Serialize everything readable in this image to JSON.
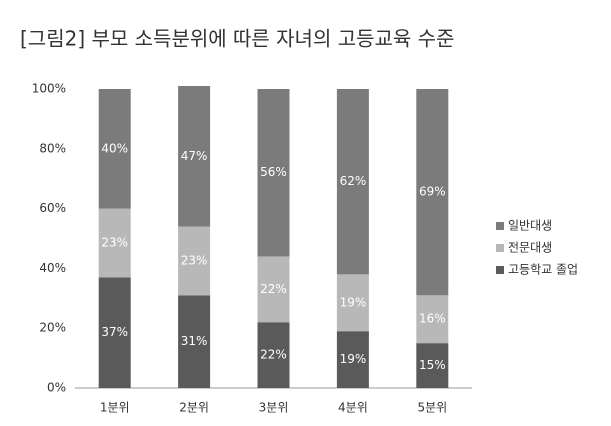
{
  "chart_data": {
    "type": "stacked_bar",
    "title": "[그림2] 부모 소득분위에 따른 자녀의 고등교육 수준",
    "categories": [
      "1분위",
      "2분위",
      "3분위",
      "4분위",
      "5분위"
    ],
    "series": [
      {
        "name": "일반대생",
        "color": "#7b7b7b",
        "values": [
          40,
          47,
          56,
          62,
          69
        ],
        "value_labels": [
          "40%",
          "47%",
          "56%",
          "62%",
          "69%"
        ]
      },
      {
        "name": "전문대생",
        "color": "#b8b8b8",
        "values": [
          23,
          23,
          22,
          19,
          16
        ],
        "value_labels": [
          "23%",
          "23%",
          "22%",
          "19%",
          "16%"
        ]
      },
      {
        "name": "고등학교 졸업",
        "color": "#5a5a5a",
        "values": [
          37,
          31,
          22,
          19,
          15
        ],
        "value_labels": [
          "37%",
          "31%",
          "22%",
          "19%",
          "15%"
        ]
      }
    ],
    "ylim": [
      0,
      100
    ],
    "yticks": [
      {
        "value": 0,
        "label": "0%"
      },
      {
        "value": 20,
        "label": "20%"
      },
      {
        "value": 40,
        "label": "40%"
      },
      {
        "value": 60,
        "label": "60%"
      },
      {
        "value": 80,
        "label": "80%"
      },
      {
        "value": 100,
        "label": "100%"
      }
    ],
    "legend": "right"
  }
}
